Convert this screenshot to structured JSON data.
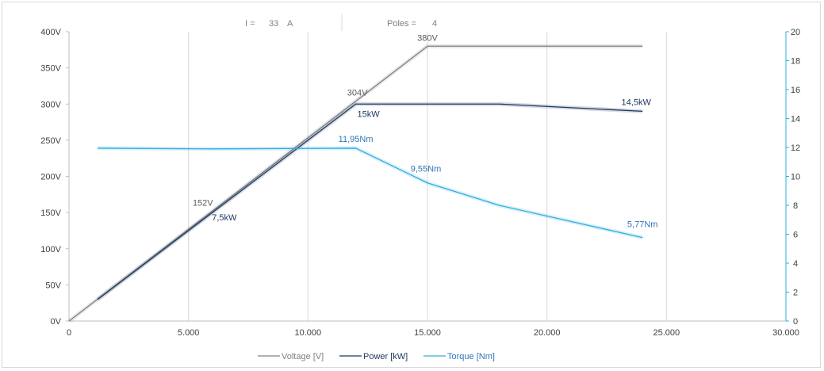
{
  "header": {
    "current_label": "I =",
    "current_value": "33",
    "current_unit": "A",
    "poles_label": "Poles =",
    "poles_value": "4"
  },
  "chart_data": {
    "type": "line",
    "x_ticks": [
      "0",
      "5.000",
      "10.000",
      "15.000",
      "20.000",
      "25.000",
      "30.000"
    ],
    "y_left_ticks": [
      "0V",
      "50V",
      "100V",
      "150V",
      "200V",
      "250V",
      "300V",
      "350V",
      "400V"
    ],
    "y_right_ticks": [
      "0",
      "2",
      "4",
      "6",
      "8",
      "10",
      "12",
      "14",
      "16",
      "18",
      "20"
    ],
    "xlim": [
      0,
      30000
    ],
    "ylim_left": [
      0,
      400
    ],
    "ylim_right": [
      0,
      20
    ],
    "grid": "vertical",
    "legend_position": "bottom",
    "colors": {
      "voltage": "#808080",
      "power": "#1f3864",
      "torque": "#2eaee0",
      "voltage_label": "#595959",
      "power_label": "#1f3864",
      "torque_label": "#2e75b6"
    },
    "series": [
      {
        "key": "voltage",
        "name": "Voltage [V]",
        "axis": "left",
        "x": [
          0,
          15000,
          24000
        ],
        "y": [
          0,
          380,
          380
        ]
      },
      {
        "key": "power",
        "name": "Power [kW]",
        "axis": "right",
        "x": [
          1200,
          12000,
          18000,
          24000
        ],
        "y": [
          1.5,
          15,
          15,
          14.5
        ]
      },
      {
        "key": "torque",
        "name": "Torque [Nm]",
        "axis": "right",
        "x": [
          1200,
          6000,
          12000,
          15000,
          18000,
          24000
        ],
        "y": [
          11.95,
          11.9,
          11.95,
          9.55,
          8.0,
          5.77
        ]
      }
    ],
    "annotations": [
      {
        "text": "380V",
        "series": "voltage",
        "x": 15000,
        "y": 380
      },
      {
        "text": "304V",
        "series": "voltage",
        "x": 12000,
        "y": 304
      },
      {
        "text": "152V",
        "series": "voltage",
        "x": 6000,
        "y": 152
      },
      {
        "text": "14,5kW",
        "series": "power",
        "x": 24000,
        "y": 14.5
      },
      {
        "text": "15kW",
        "series": "power",
        "x": 12000,
        "y": 15
      },
      {
        "text": "7,5kW",
        "series": "power",
        "x": 6000,
        "y": 7.5
      },
      {
        "text": "11,95Nm",
        "series": "torque",
        "x": 12000,
        "y": 11.95
      },
      {
        "text": "9,55Nm",
        "series": "torque",
        "x": 15000,
        "y": 9.55
      },
      {
        "text": "5,77Nm",
        "series": "torque",
        "x": 24000,
        "y": 5.77
      }
    ]
  }
}
